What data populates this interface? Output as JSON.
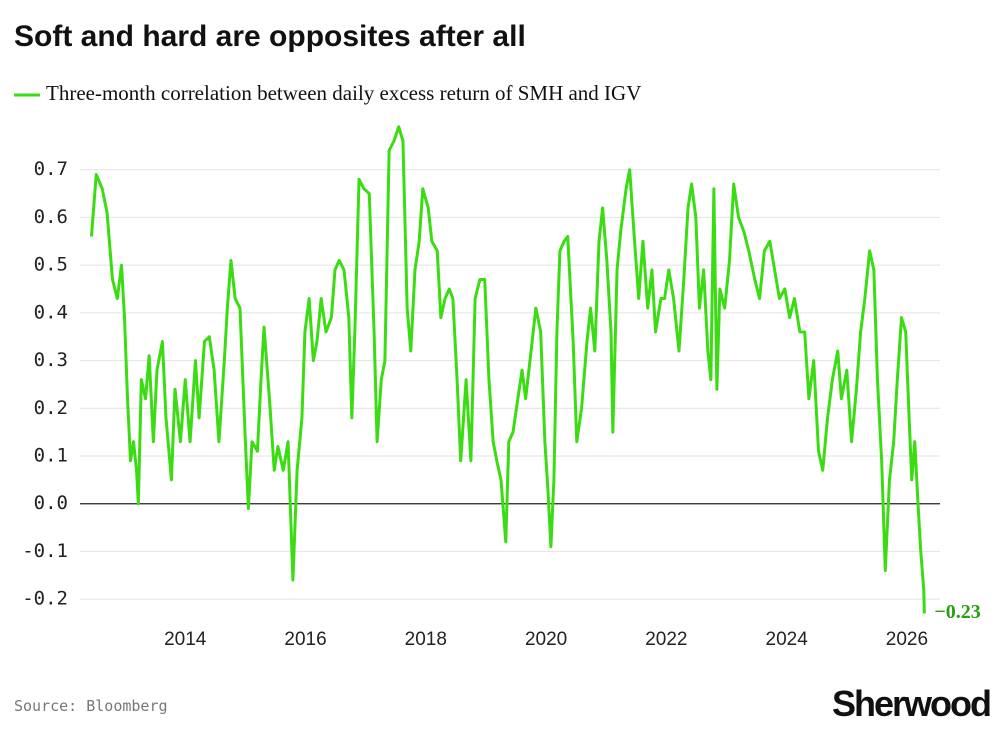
{
  "chart_data": {
    "type": "line",
    "title": "Soft and hard are opposites after all",
    "source": "Source: Bloomberg",
    "brand": "Sherwood",
    "xlim": [
      2012.25,
      2026.55
    ],
    "xticks": [
      2014,
      2016,
      2018,
      2020,
      2022,
      2024,
      2026
    ],
    "ylim": [
      -0.25,
      0.8
    ],
    "yticks": [
      -0.2,
      -0.1,
      {
        "value": 0,
        "label": "0.0"
      },
      0.1,
      0.2,
      0.3,
      0.4,
      0.5,
      0.6,
      0.7
    ],
    "grid": true,
    "x": [
      2012.44,
      2012.52,
      2012.62,
      2012.7,
      2012.79,
      2012.87,
      2012.94,
      2012.99,
      2013.04,
      2013.09,
      2013.14,
      2013.19,
      2013.22,
      2013.27,
      2013.34,
      2013.4,
      2013.47,
      2013.53,
      2013.62,
      2013.68,
      2013.77,
      2013.83,
      2013.92,
      2014.0,
      2014.08,
      2014.17,
      2014.23,
      2014.32,
      2014.4,
      2014.48,
      2014.56,
      2014.65,
      2014.7,
      2014.76,
      2014.83,
      2014.91,
      2015.0,
      2015.05,
      2015.11,
      2015.2,
      2015.26,
      2015.31,
      2015.4,
      2015.48,
      2015.54,
      2015.63,
      2015.71,
      2015.79,
      2015.86,
      2015.94,
      2015.99,
      2016.06,
      2016.13,
      2016.19,
      2016.26,
      2016.34,
      2016.43,
      2016.49,
      2016.56,
      2016.64,
      2016.72,
      2016.77,
      2016.82,
      2016.89,
      2016.97,
      2017.06,
      2017.14,
      2017.19,
      2017.26,
      2017.32,
      2017.39,
      2017.47,
      2017.55,
      2017.62,
      2017.69,
      2017.75,
      2017.82,
      2017.89,
      2017.95,
      2018.04,
      2018.1,
      2018.19,
      2018.25,
      2018.32,
      2018.39,
      2018.45,
      2018.52,
      2018.58,
      2018.67,
      2018.75,
      2018.82,
      2018.9,
      2018.98,
      2019.05,
      2019.12,
      2019.18,
      2019.25,
      2019.33,
      2019.38,
      2019.45,
      2019.53,
      2019.6,
      2019.66,
      2019.75,
      2019.83,
      2019.91,
      2019.98,
      2020.03,
      2020.08,
      2020.13,
      2020.18,
      2020.23,
      2020.3,
      2020.36,
      2020.45,
      2020.51,
      2020.59,
      2020.68,
      2020.74,
      2020.81,
      2020.88,
      2020.94,
      2021.01,
      2021.08,
      2021.11,
      2021.18,
      2021.24,
      2021.33,
      2021.39,
      2021.46,
      2021.54,
      2021.61,
      2021.69,
      2021.76,
      2021.82,
      2021.91,
      2021.97,
      2022.04,
      2022.12,
      2022.21,
      2022.29,
      2022.36,
      2022.42,
      2022.49,
      2022.55,
      2022.62,
      2022.69,
      2022.74,
      2022.79,
      2022.84,
      2022.89,
      2022.97,
      2023.05,
      2023.12,
      2023.2,
      2023.29,
      2023.37,
      2023.47,
      2023.55,
      2023.63,
      2023.72,
      2023.8,
      2023.88,
      2023.97,
      2024.05,
      2024.13,
      2024.22,
      2024.3,
      2024.37,
      2024.45,
      2024.53,
      2024.6,
      2024.68,
      2024.76,
      2024.85,
      2024.91,
      2025.0,
      2025.08,
      2025.16,
      2025.23,
      2025.3,
      2025.38,
      2025.45,
      2025.51,
      2025.58,
      2025.64,
      2025.71,
      2025.78,
      2025.84,
      2025.91,
      2025.98,
      2026.03,
      2026.08,
      2026.13,
      2026.18,
      2026.23,
      2026.28,
      2026.29
    ],
    "series": [
      {
        "name": "Three-month correlation between daily excess return of SMH and IGV",
        "color": "#3bdc14",
        "values": [
          0.56,
          0.69,
          0.66,
          0.61,
          0.47,
          0.43,
          0.5,
          0.39,
          0.22,
          0.09,
          0.13,
          0.07,
          0.0,
          0.26,
          0.22,
          0.31,
          0.13,
          0.28,
          0.34,
          0.18,
          0.05,
          0.24,
          0.13,
          0.26,
          0.13,
          0.3,
          0.18,
          0.34,
          0.35,
          0.28,
          0.13,
          0.3,
          0.41,
          0.51,
          0.43,
          0.41,
          0.13,
          -0.01,
          0.13,
          0.11,
          0.26,
          0.37,
          0.22,
          0.07,
          0.12,
          0.07,
          0.13,
          -0.16,
          0.07,
          0.18,
          0.36,
          0.43,
          0.3,
          0.34,
          0.43,
          0.36,
          0.39,
          0.49,
          0.51,
          0.49,
          0.39,
          0.18,
          0.36,
          0.68,
          0.66,
          0.65,
          0.36,
          0.13,
          0.26,
          0.3,
          0.74,
          0.76,
          0.79,
          0.76,
          0.41,
          0.32,
          0.49,
          0.55,
          0.66,
          0.62,
          0.55,
          0.53,
          0.39,
          0.43,
          0.45,
          0.43,
          0.26,
          0.09,
          0.26,
          0.09,
          0.43,
          0.47,
          0.47,
          0.26,
          0.13,
          0.09,
          0.05,
          -0.08,
          0.13,
          0.15,
          0.22,
          0.28,
          0.22,
          0.32,
          0.41,
          0.36,
          0.13,
          0.03,
          -0.09,
          0.05,
          0.36,
          0.53,
          0.55,
          0.56,
          0.34,
          0.13,
          0.2,
          0.34,
          0.41,
          0.32,
          0.55,
          0.62,
          0.51,
          0.36,
          0.15,
          0.49,
          0.57,
          0.66,
          0.7,
          0.57,
          0.43,
          0.55,
          0.41,
          0.49,
          0.36,
          0.43,
          0.43,
          0.49,
          0.43,
          0.32,
          0.47,
          0.62,
          0.67,
          0.6,
          0.41,
          0.49,
          0.32,
          0.26,
          0.66,
          0.24,
          0.45,
          0.41,
          0.51,
          0.67,
          0.6,
          0.57,
          0.53,
          0.47,
          0.43,
          0.53,
          0.55,
          0.49,
          0.43,
          0.45,
          0.39,
          0.43,
          0.36,
          0.36,
          0.22,
          0.3,
          0.11,
          0.07,
          0.18,
          0.26,
          0.32,
          0.22,
          0.28,
          0.13,
          0.24,
          0.36,
          0.43,
          0.53,
          0.49,
          0.26,
          0.09,
          -0.14,
          0.05,
          0.13,
          0.26,
          0.39,
          0.36,
          0.2,
          0.05,
          0.13,
          0.01,
          -0.1,
          -0.18,
          -0.23
        ]
      }
    ],
    "annotations": [
      {
        "label": "−0.23",
        "value": -0.23
      }
    ]
  }
}
